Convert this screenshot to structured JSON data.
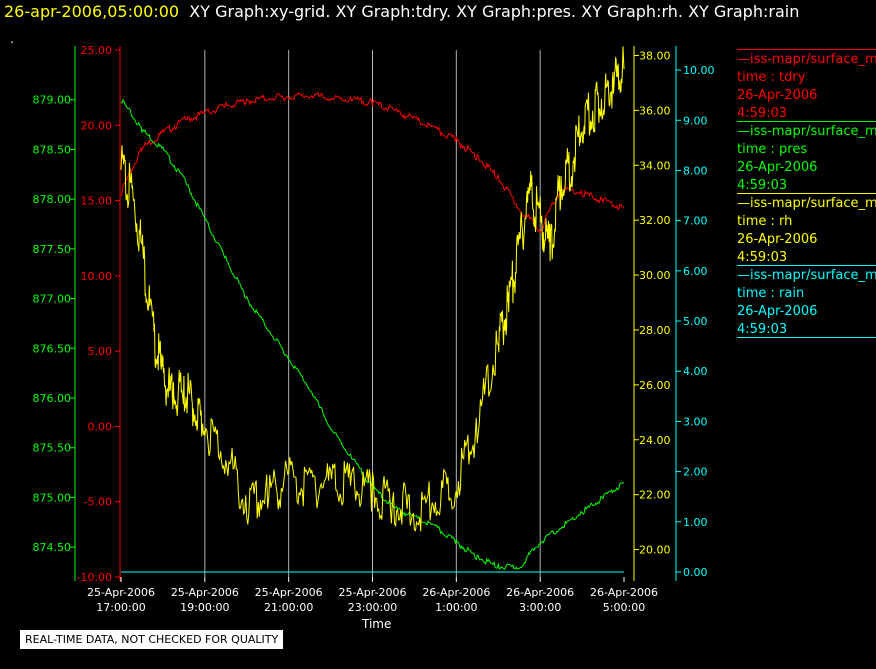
{
  "header": {
    "date": "26-apr-2006,05:00:00",
    "graphs": "XY Graph:xy-grid.  XY Graph:tdry.  XY Graph:pres.  XY Graph:rh.  XY Graph:rain"
  },
  "dot": ".",
  "disclaimer": "REAL-TIME DATA, NOT CHECKED FOR QUALITY",
  "legend": [
    {
      "name": "—iss-mapr/surface_m",
      "var": "time : tdry",
      "date": "26-Apr-2006",
      "time": "4:59:03",
      "color": "#ff0000"
    },
    {
      "name": "—iss-mapr/surface_m",
      "var": "time : pres",
      "date": "26-Apr-2006",
      "time": "4:59:03",
      "color": "#00ff00"
    },
    {
      "name": "—iss-mapr/surface_m",
      "var": "time : rh",
      "date": "26-Apr-2006",
      "time": "4:59:03",
      "color": "#ffff00"
    },
    {
      "name": "—iss-mapr/surface_m",
      "var": "time : rain",
      "date": "26-Apr-2006",
      "time": "4:59:03",
      "color": "#00ffff"
    }
  ],
  "chart_data": {
    "type": "line",
    "xlabel": "Time",
    "x_ticks": [
      {
        "date": "25-Apr-2006",
        "time": "17:00:00"
      },
      {
        "date": "25-Apr-2006",
        "time": "19:00:00"
      },
      {
        "date": "25-Apr-2006",
        "time": "21:00:00"
      },
      {
        "date": "25-Apr-2006",
        "time": "23:00:00"
      },
      {
        "date": "26-Apr-2006",
        "time": "1:00:00"
      },
      {
        "date": "26-Apr-2006",
        "time": "3:00:00"
      },
      {
        "date": "26-Apr-2006",
        "time": "5:00:00"
      }
    ],
    "xlim_hours": [
      0,
      12
    ],
    "grid": "vertical",
    "axes": {
      "pres": {
        "color": "#00ff00",
        "ylim": [
          874.2,
          879.5
        ],
        "ticks": [
          "874.50",
          "875.00",
          "875.50",
          "876.00",
          "876.50",
          "877.00",
          "877.50",
          "878.00",
          "878.50",
          "879.00"
        ]
      },
      "tdry": {
        "color": "#ff0000",
        "ylim": [
          -10,
          25
        ],
        "ticks": [
          "-10.00",
          "-5.00",
          "0.00",
          "5.00",
          "10.00",
          "15.00",
          "20.00",
          "25.00"
        ]
      },
      "rh": {
        "color": "#ffff00",
        "ylim": [
          19,
          38.2
        ],
        "ticks": [
          "20.00",
          "22.00",
          "24.00",
          "26.00",
          "28.00",
          "30.00",
          "32.00",
          "34.00",
          "36.00",
          "38.00"
        ]
      },
      "rain": {
        "color": "#00ffff",
        "ylim": [
          -0.1,
          10.4
        ],
        "ticks": [
          "0.00",
          "1.00",
          "2.00",
          "3.00",
          "4.00",
          "5.00",
          "6.00",
          "7.00",
          "8.00",
          "9.00",
          "10.00"
        ]
      }
    },
    "series": [
      {
        "key": "tdry",
        "x": [
          0,
          0.5,
          1,
          1.5,
          2,
          2.5,
          3,
          3.5,
          4,
          4.5,
          5,
          5.5,
          6,
          6.5,
          7,
          7.5,
          8,
          8.5,
          9,
          9.5,
          10,
          10.5,
          11,
          11.5,
          12
        ],
        "y": [
          15.5,
          18.5,
          19.5,
          20.3,
          20.8,
          21.3,
          21.6,
          21.8,
          21.9,
          22.0,
          21.8,
          21.7,
          21.5,
          21.0,
          20.4,
          19.7,
          19.0,
          17.9,
          16.5,
          14.5,
          13.0,
          15.8,
          15.5,
          15.0,
          14.5
        ]
      },
      {
        "key": "pres",
        "x": [
          0,
          0.5,
          1,
          1.5,
          2,
          2.5,
          3,
          3.5,
          4,
          4.5,
          5,
          5.5,
          6,
          6.5,
          7,
          7.5,
          8,
          8.5,
          9,
          9.5,
          10,
          10.5,
          11,
          11.5,
          12
        ],
        "y": [
          879.0,
          878.7,
          878.5,
          878.2,
          877.8,
          877.4,
          877.0,
          876.7,
          876.4,
          876.1,
          875.7,
          875.4,
          875.1,
          874.9,
          874.8,
          874.7,
          874.55,
          874.4,
          874.3,
          874.3,
          874.55,
          874.7,
          874.85,
          875.0,
          875.15
        ]
      },
      {
        "key": "rh",
        "x": [
          0,
          0.25,
          0.5,
          0.75,
          1,
          1.25,
          1.5,
          1.75,
          2,
          2.5,
          3,
          3.5,
          4,
          4.5,
          5,
          5.5,
          6,
          6.5,
          7,
          7.5,
          8,
          8.5,
          9,
          9.25,
          9.5,
          9.75,
          10,
          10.25,
          10.5,
          10.75,
          11,
          11.25,
          11.5,
          11.75,
          12
        ],
        "y": [
          34,
          33,
          31,
          28,
          26.3,
          25.5,
          25.8,
          25.2,
          24.5,
          23.5,
          21.5,
          22.0,
          22.5,
          22.3,
          22.5,
          22.3,
          22.0,
          21.8,
          21.3,
          21.8,
          22.5,
          24.5,
          27.5,
          29,
          31,
          33,
          32,
          31,
          33.5,
          34,
          35.5,
          36,
          36.5,
          37,
          37.5
        ]
      },
      {
        "key": "rain",
        "x": [
          0,
          12
        ],
        "y": [
          0,
          0
        ]
      }
    ]
  }
}
